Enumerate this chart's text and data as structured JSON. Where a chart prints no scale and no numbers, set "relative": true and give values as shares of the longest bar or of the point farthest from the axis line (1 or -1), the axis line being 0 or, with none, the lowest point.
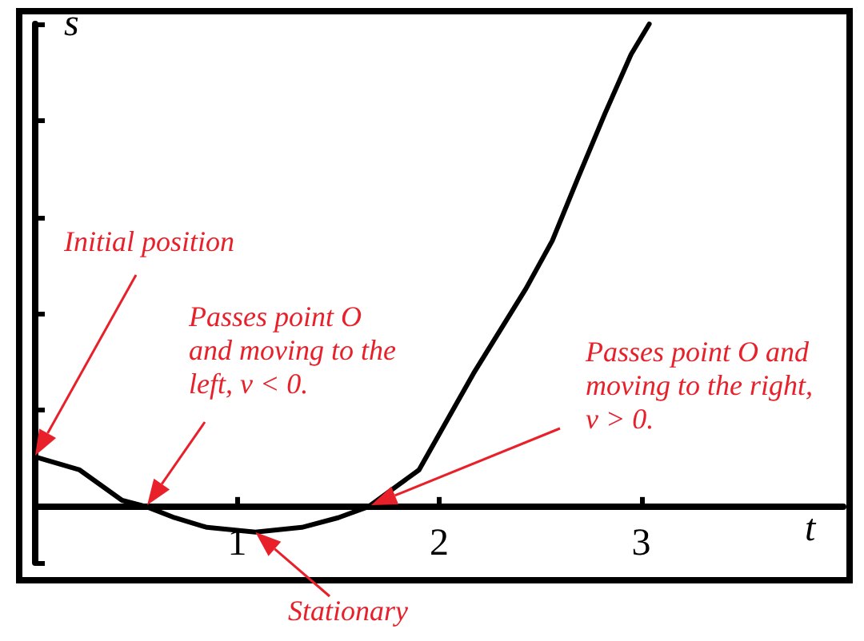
{
  "chart_data": {
    "type": "line",
    "relative": true,
    "xlabel": "t",
    "ylabel": "s",
    "x": [
      0,
      0.22,
      0.43,
      0.55,
      0.69,
      0.85,
      1.09,
      1.32,
      1.5,
      1.65,
      1.9,
      2.17,
      2.43,
      2.56,
      2.69,
      2.82,
      2.95,
      3.04
    ],
    "series": [
      {
        "color": "#000000",
        "values": [
          0.103,
          0.076,
          0.013,
          0,
          -0.023,
          -0.043,
          -0.053,
          -0.043,
          -0.023,
          0,
          0.076,
          0.276,
          0.452,
          0.551,
          0.684,
          0.814,
          0.937,
          1
        ]
      }
    ],
    "xlim": [
      0,
      4
    ],
    "xticks": [
      1,
      2,
      3
    ],
    "marker": "none",
    "line_style": "solid",
    "annotations": [
      "Initial position",
      "Passes point O and moving to the left, v < 0.",
      "Passes point O and moving to the right, v > 0.",
      {
        "text": "Stationary",
        "x": 1.09,
        "y": -0.053
      }
    ]
  }
}
